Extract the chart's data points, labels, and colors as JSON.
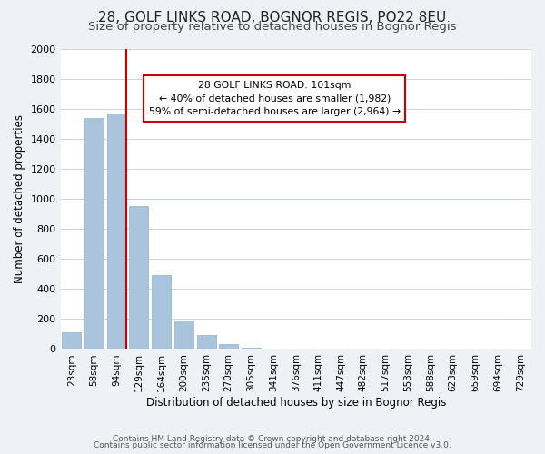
{
  "title": "28, GOLF LINKS ROAD, BOGNOR REGIS, PO22 8EU",
  "subtitle": "Size of property relative to detached houses in Bognor Regis",
  "xlabel": "Distribution of detached houses by size in Bognor Regis",
  "ylabel": "Number of detached properties",
  "bar_labels": [
    "23sqm",
    "58sqm",
    "94sqm",
    "129sqm",
    "164sqm",
    "200sqm",
    "235sqm",
    "270sqm",
    "305sqm",
    "341sqm",
    "376sqm",
    "411sqm",
    "447sqm",
    "482sqm",
    "517sqm",
    "553sqm",
    "588sqm",
    "623sqm",
    "659sqm",
    "694sqm",
    "729sqm"
  ],
  "bar_values": [
    110,
    1540,
    1570,
    950,
    490,
    190,
    95,
    35,
    10,
    3,
    1,
    0,
    0,
    0,
    0,
    0,
    0,
    0,
    0,
    0,
    0
  ],
  "bar_color": "#aac4de",
  "bar_edge_color": "#9ab8d4",
  "vline_color": "#cc0000",
  "vline_x": 2.425,
  "ylim": [
    0,
    2000
  ],
  "yticks": [
    0,
    200,
    400,
    600,
    800,
    1000,
    1200,
    1400,
    1600,
    1800,
    2000
  ],
  "annotation_title": "28 GOLF LINKS ROAD: 101sqm",
  "annotation_line1": "← 40% of detached houses are smaller (1,982)",
  "annotation_line2": "59% of semi-detached houses are larger (2,964) →",
  "bg_color": "#eef2f7",
  "plot_bg_color": "#ffffff",
  "footer1": "Contains HM Land Registry data © Crown copyright and database right 2024.",
  "footer2": "Contains public sector information licensed under the Open Government Licence v3.0.",
  "grid_color": "#ccd6e0",
  "title_fontsize": 11,
  "subtitle_fontsize": 9.5,
  "annot_box_color": "#ffffff",
  "annot_box_edge": "#cc0000"
}
